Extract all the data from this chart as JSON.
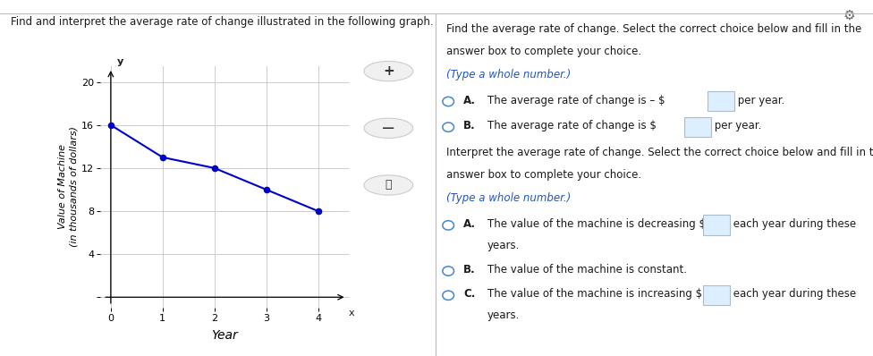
{
  "title_left": "Find and interpret the average rate of change illustrated in the following graph.",
  "graph_xlabel": "Year",
  "graph_ylabel_line1": "Value of Machine",
  "graph_ylabel_line2": "(in thousands of dollars)",
  "x_data": [
    0,
    1,
    2,
    3,
    4
  ],
  "y_data": [
    16,
    13,
    12,
    10,
    8
  ],
  "line_color": "#0000CC",
  "dot_color": "#0000CC",
  "xlim": [
    -0.2,
    4.6
  ],
  "ylim": [
    -1.0,
    21.5
  ],
  "xticks": [
    0,
    1,
    2,
    3,
    4
  ],
  "yticks": [
    0,
    4,
    8,
    12,
    16,
    20
  ],
  "grid_color": "#cccccc",
  "axis_label_x": "x",
  "axis_label_y": "y",
  "bg_color": "#ffffff",
  "divider_color": "#bbbbbb",
  "right_title1": "Find the average rate of change. Select the correct choice below and fill in the",
  "right_title2": "answer box to complete your choice.",
  "right_subtitle1": "(Type a whole number.)",
  "choice_A1_text": "The average rate of change is – $",
  "choice_A1_end": " per year.",
  "choice_B1_text": "The average rate of change is $",
  "choice_B1_end": " per year.",
  "right_title3": "Interpret the average rate of change. Select the correct choice below and fill in the",
  "right_title4": "answer box to complete your choice.",
  "right_subtitle2": "(Type a whole number.)",
  "choice_A2_part1": "The value of the machine is decreasing $",
  "choice_A2_part2": " each year during these",
  "choice_A2_part3": "years.",
  "choice_B2": "The value of the machine is constant.",
  "choice_C2_part1": "The value of the machine is increasing $",
  "choice_C2_part2": " each year during these",
  "choice_C2_part3": "years.",
  "gear_color": "#666666",
  "text_color": "#1a1a1a",
  "blue_text_color": "#2255bb",
  "option_circle_color": "#4488cc",
  "input_box_color": "#ddeeff",
  "input_box_border": "#aabbcc"
}
